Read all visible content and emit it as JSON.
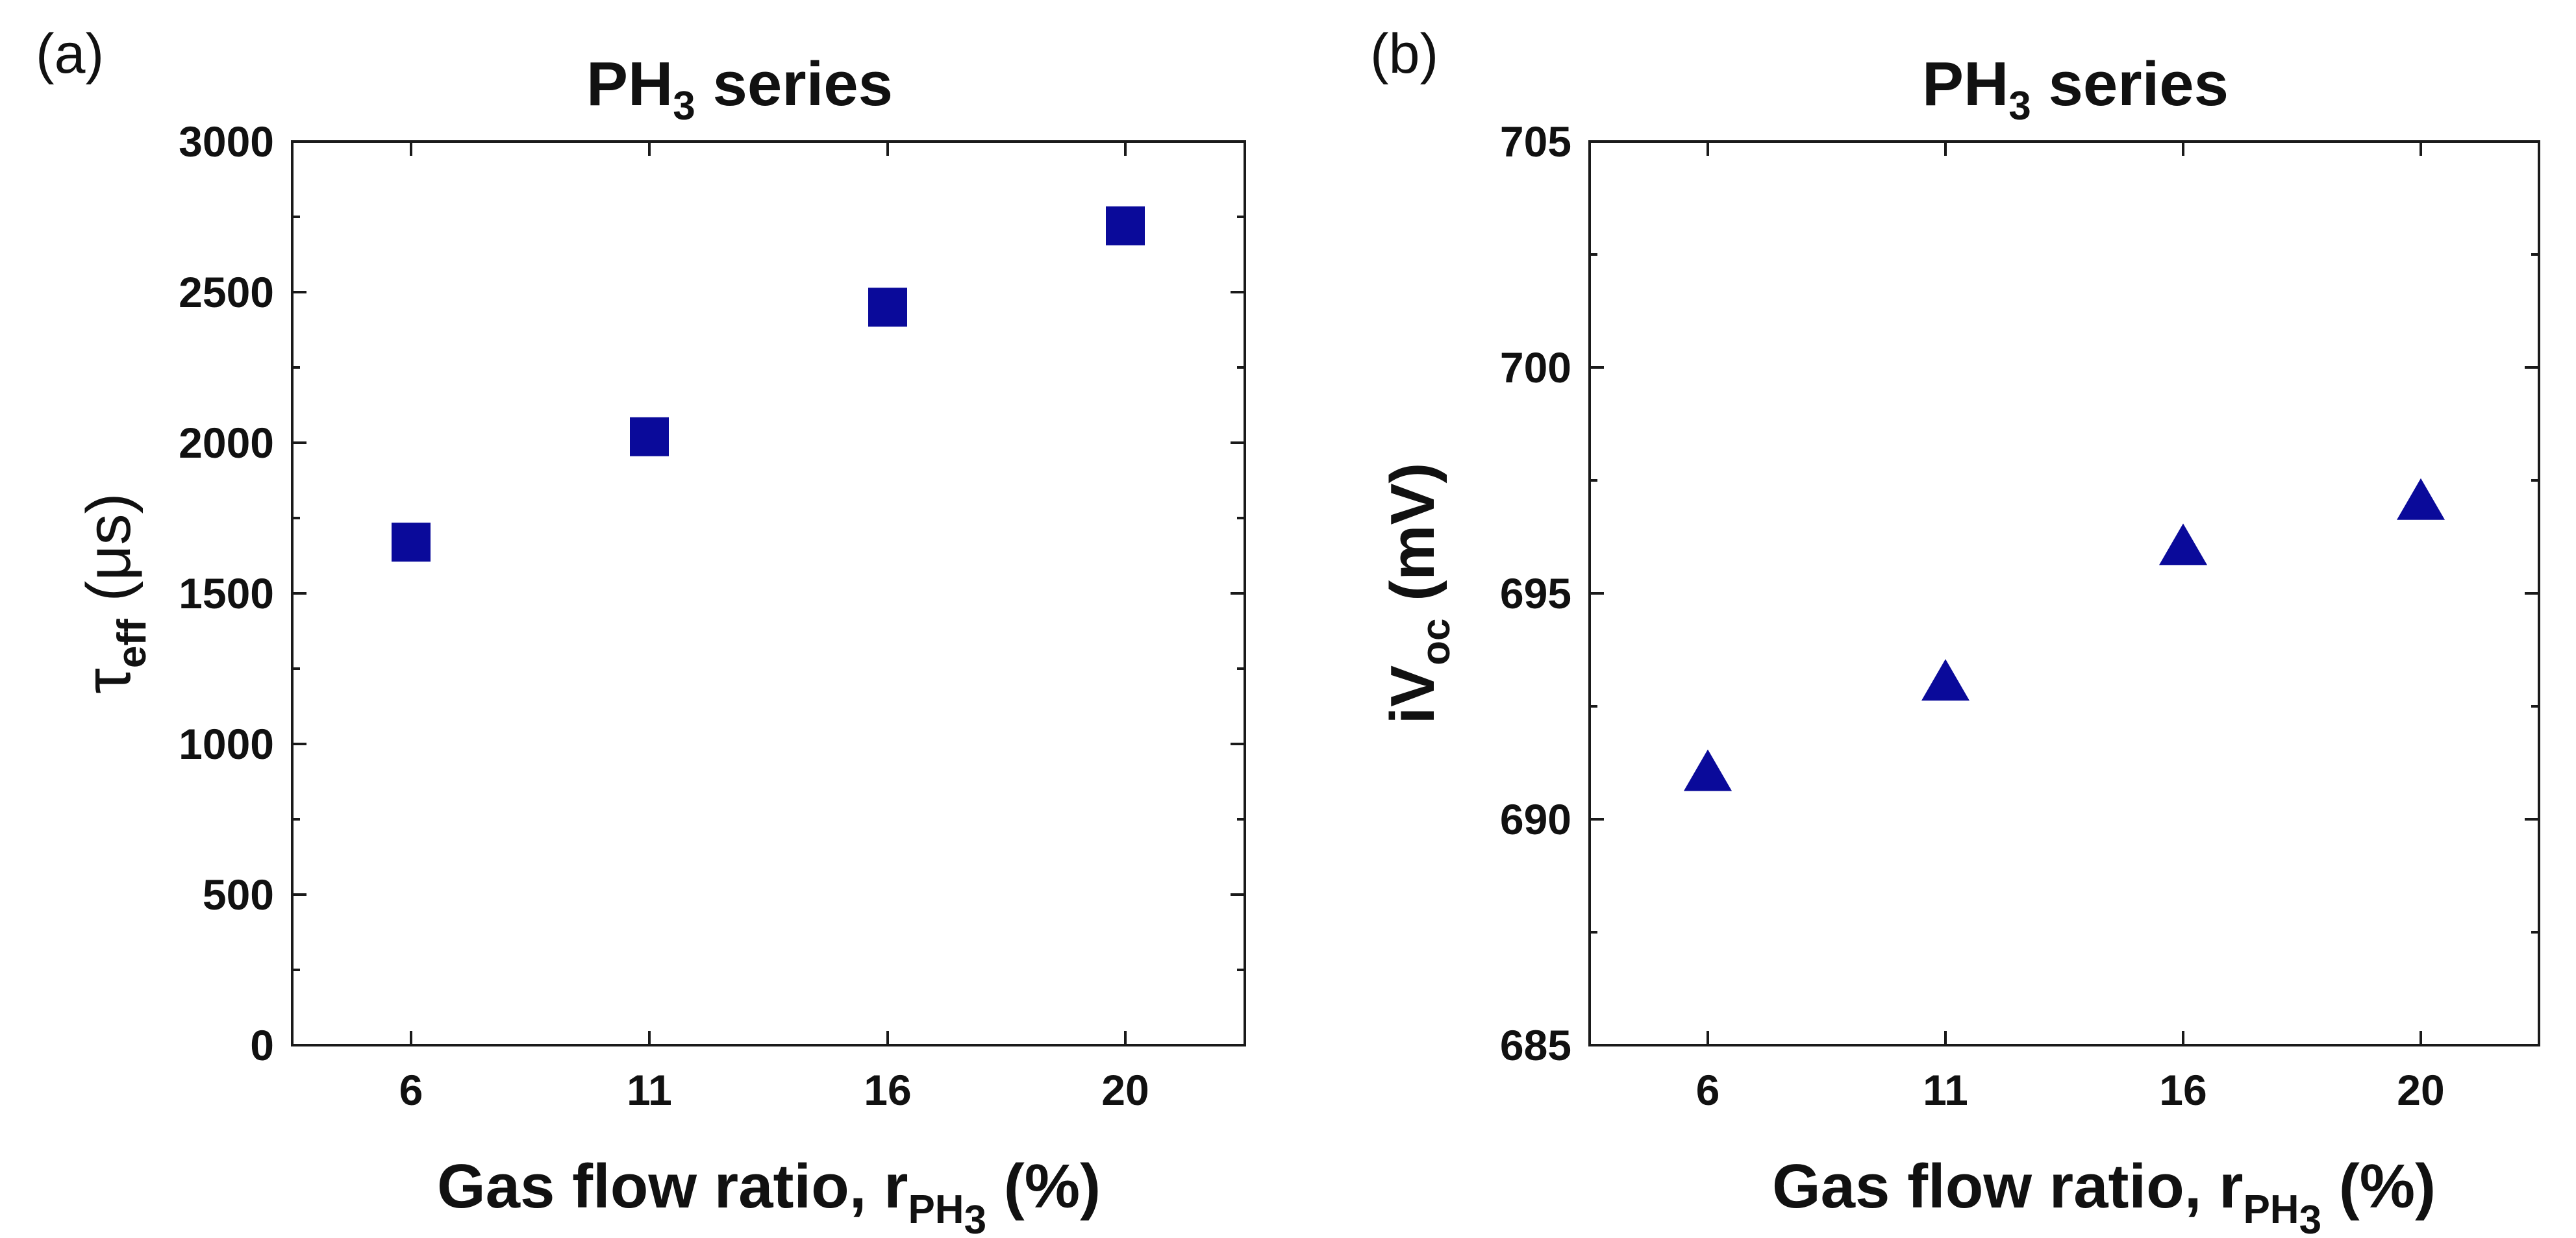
{
  "chart_data": [
    {
      "type": "scatter",
      "panel_label": "(a)",
      "title": "PH3 series",
      "title_main": "PH",
      "title_sub": "3",
      "title_rest": " series",
      "ylabel": "τeff (μs)",
      "ylabel_symbol": "τ",
      "ylabel_sub": "eff",
      "ylabel_rest": " (μs)",
      "xlabel": "Gas flow ratio, rPH3 (%)",
      "xlabel_main": "Gas flow ratio, r",
      "xlabel_sub": "PH",
      "xlabel_subsub": "3",
      "xlabel_rest": " (%)",
      "categories": [
        "6",
        "11",
        "16",
        "20"
      ],
      "ylim": [
        0,
        3000
      ],
      "yticks": [
        0,
        500,
        1000,
        1500,
        2000,
        2500,
        3000
      ],
      "yticks_text": [
        "0",
        "500",
        "1000",
        "1500",
        "2000",
        "2500",
        "3000"
      ],
      "marker": "square",
      "color": "#0a0a9a",
      "series": [
        {
          "name": "PH3 series",
          "values": [
            1670,
            2020,
            2450,
            2720
          ]
        }
      ]
    },
    {
      "type": "scatter",
      "panel_label": "(b)",
      "title": "PH3 series",
      "title_main": "PH",
      "title_sub": "3",
      "title_rest": " series",
      "ylabel": "iVoc (mV)",
      "ylabel_main": "iV",
      "ylabel_sub": "oc",
      "ylabel_rest": " (mV)",
      "xlabel": "Gas flow ratio, rPH3 (%)",
      "xlabel_main": "Gas flow ratio, r",
      "xlabel_sub": "PH",
      "xlabel_subsub": "3",
      "xlabel_rest": " (%)",
      "categories": [
        "6",
        "11",
        "16",
        "20"
      ],
      "ylim": [
        685,
        705
      ],
      "yticks": [
        685,
        690,
        695,
        700,
        705
      ],
      "yticks_text": [
        "685",
        "690",
        "695",
        "700",
        "705"
      ],
      "marker": "triangle",
      "color": "#0a0a9a",
      "series": [
        {
          "name": "PH3 series",
          "values": [
            691,
            693,
            696,
            697
          ]
        }
      ]
    }
  ]
}
